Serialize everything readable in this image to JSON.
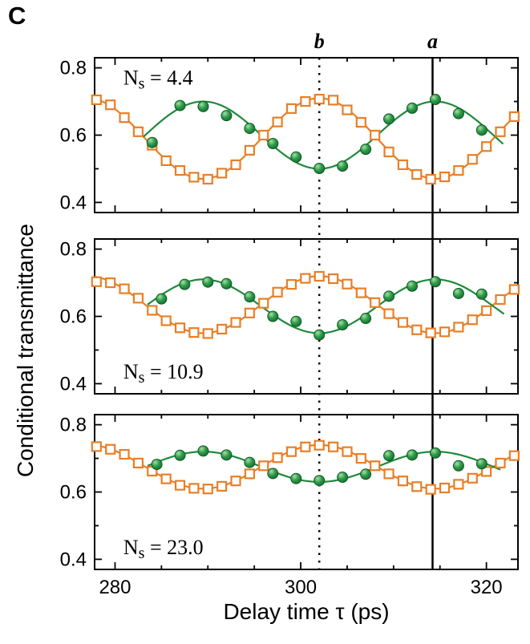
{
  "figure": {
    "panel_label": "C",
    "y_axis_title": "Conditional transmittance",
    "x_axis_title": "Delay time τ (ps)",
    "axes": {
      "xlim": [
        277.8,
        323.4
      ],
      "ylim": [
        0.37,
        0.83
      ],
      "x_ticks": [
        {
          "v": 280,
          "label": "280"
        },
        {
          "v": 300,
          "label": "300"
        },
        {
          "v": 320,
          "label": "320"
        }
      ],
      "x_minor_ticks": [
        285,
        290,
        295,
        305,
        310,
        315
      ],
      "y_ticks": [
        {
          "v": 0.8,
          "label": "0.8"
        },
        {
          "v": 0.6,
          "label": "0.6"
        },
        {
          "v": 0.4,
          "label": "0.4"
        }
      ],
      "y_minor_ticks": [
        0.5,
        0.7
      ]
    },
    "vlines": [
      {
        "label": "b",
        "x": 302,
        "style": "dashed"
      },
      {
        "label": "a",
        "x": 314.2,
        "style": "solid"
      }
    ],
    "colors": {
      "green": "#1f8a3c",
      "orange": "#e87f28"
    }
  },
  "chart_data": [
    {
      "type": "scatter+line",
      "label": "Ns = 4.4",
      "label_pos": "top-left",
      "series": [
        {
          "name": "orange-open-squares",
          "marker": "open-square",
          "color": "#e87f28",
          "fit": {
            "mean": 0.59,
            "amplitude": 0.12,
            "period": 25,
            "x0": 302,
            "sign": 1,
            "x_range": [
              277.8,
              323.4
            ]
          },
          "points": [
            [
              278,
              0.705
            ],
            [
              279.5,
              0.69
            ],
            [
              281,
              0.652
            ],
            [
              282.5,
              0.61
            ],
            [
              284,
              0.57
            ],
            [
              285.5,
              0.524
            ],
            [
              287,
              0.495
            ],
            [
              288.5,
              0.475
            ],
            [
              290,
              0.469
            ],
            [
              291.5,
              0.487
            ],
            [
              293,
              0.512
            ],
            [
              294.5,
              0.555
            ],
            [
              296,
              0.6
            ],
            [
              297.5,
              0.639
            ],
            [
              299,
              0.679
            ],
            [
              300.5,
              0.7
            ],
            [
              302,
              0.707
            ],
            [
              303.5,
              0.704
            ],
            [
              305,
              0.675
            ],
            [
              306.5,
              0.638
            ],
            [
              308,
              0.6
            ],
            [
              309.5,
              0.55
            ],
            [
              311,
              0.512
            ],
            [
              312.5,
              0.483
            ],
            [
              314,
              0.469
            ],
            [
              315.5,
              0.476
            ],
            [
              317,
              0.495
            ],
            [
              318.5,
              0.528
            ],
            [
              320,
              0.566
            ],
            [
              321.5,
              0.61
            ],
            [
              323,
              0.655
            ]
          ]
        },
        {
          "name": "green-filled-circles",
          "marker": "filled-circle",
          "color": "#1f8a3c",
          "fit": {
            "mean": 0.6,
            "amplitude": 0.1,
            "period": 25,
            "x0": 302,
            "sign": -1,
            "x_range": [
              283,
              322
            ]
          },
          "points": [
            [
              284,
              0.578
            ],
            [
              287,
              0.688
            ],
            [
              289.5,
              0.685
            ],
            [
              292,
              0.658
            ],
            [
              294.5,
              0.62
            ],
            [
              297,
              0.575
            ],
            [
              299.5,
              0.535
            ],
            [
              302,
              0.501
            ],
            [
              304.5,
              0.508
            ],
            [
              307,
              0.558
            ],
            [
              309.5,
              0.648
            ],
            [
              312,
              0.68
            ],
            [
              314.5,
              0.706
            ],
            [
              317,
              0.664
            ],
            [
              319.5,
              0.615
            ]
          ]
        }
      ]
    },
    {
      "type": "scatter+line",
      "label": "Ns = 10.9",
      "label_pos": "bottom-left",
      "series": [
        {
          "name": "orange-open-squares",
          "marker": "open-square",
          "color": "#e87f28",
          "fit": {
            "mean": 0.635,
            "amplitude": 0.085,
            "period": 25,
            "x0": 302,
            "sign": 1,
            "x_range": [
              277.8,
              323.4
            ]
          },
          "points": [
            [
              278,
              0.703
            ],
            [
              279.5,
              0.7
            ],
            [
              281,
              0.682
            ],
            [
              282.5,
              0.654
            ],
            [
              284,
              0.618
            ],
            [
              285.5,
              0.587
            ],
            [
              287,
              0.566
            ],
            [
              288.5,
              0.552
            ],
            [
              290,
              0.549
            ],
            [
              291.5,
              0.562
            ],
            [
              293,
              0.582
            ],
            [
              294.5,
              0.61
            ],
            [
              296,
              0.639
            ],
            [
              297.5,
              0.672
            ],
            [
              299,
              0.695
            ],
            [
              300.5,
              0.713
            ],
            [
              302,
              0.719
            ],
            [
              303.5,
              0.712
            ],
            [
              305,
              0.696
            ],
            [
              306.5,
              0.67
            ],
            [
              308,
              0.641
            ],
            [
              309.5,
              0.608
            ],
            [
              311,
              0.582
            ],
            [
              312.5,
              0.56
            ],
            [
              314,
              0.551
            ],
            [
              315.5,
              0.554
            ],
            [
              317,
              0.568
            ],
            [
              318.5,
              0.59
            ],
            [
              320,
              0.617
            ],
            [
              321.5,
              0.65
            ],
            [
              323,
              0.68
            ]
          ]
        },
        {
          "name": "green-filled-circles",
          "marker": "filled-circle",
          "color": "#1f8a3c",
          "fit": {
            "mean": 0.63,
            "amplitude": 0.08,
            "period": 25,
            "x0": 302,
            "sign": -1,
            "x_range": [
              283.5,
              322
            ]
          },
          "points": [
            [
              285,
              0.652
            ],
            [
              287.5,
              0.695
            ],
            [
              290,
              0.702
            ],
            [
              292,
              0.697
            ],
            [
              294.5,
              0.658
            ],
            [
              297,
              0.6
            ],
            [
              299.5,
              0.585
            ],
            [
              302,
              0.545
            ],
            [
              304.5,
              0.575
            ],
            [
              307,
              0.594
            ],
            [
              309.5,
              0.66
            ],
            [
              312,
              0.69
            ],
            [
              314.5,
              0.703
            ],
            [
              317,
              0.668
            ],
            [
              319.5,
              0.666
            ]
          ]
        }
      ]
    },
    {
      "type": "scatter+line",
      "label": "Ns = 23.0",
      "label_pos": "bottom-left",
      "series": [
        {
          "name": "orange-open-squares",
          "marker": "open-square",
          "color": "#e87f28",
          "fit": {
            "mean": 0.675,
            "amplitude": 0.065,
            "period": 25,
            "x0": 302,
            "sign": 1,
            "x_range": [
              277.8,
              323.4
            ]
          },
          "points": [
            [
              278,
              0.735
            ],
            [
              279.5,
              0.727
            ],
            [
              281,
              0.712
            ],
            [
              282.5,
              0.686
            ],
            [
              284,
              0.662
            ],
            [
              285.5,
              0.639
            ],
            [
              287,
              0.62
            ],
            [
              288.5,
              0.611
            ],
            [
              290,
              0.609
            ],
            [
              291.5,
              0.617
            ],
            [
              293,
              0.633
            ],
            [
              294.5,
              0.654
            ],
            [
              296,
              0.678
            ],
            [
              297.5,
              0.702
            ],
            [
              299,
              0.72
            ],
            [
              300.5,
              0.734
            ],
            [
              302,
              0.739
            ],
            [
              303.5,
              0.734
            ],
            [
              305,
              0.72
            ],
            [
              306.5,
              0.7
            ],
            [
              308,
              0.678
            ],
            [
              309.5,
              0.654
            ],
            [
              311,
              0.633
            ],
            [
              312.5,
              0.616
            ],
            [
              314,
              0.608
            ],
            [
              315.5,
              0.612
            ],
            [
              317,
              0.623
            ],
            [
              318.5,
              0.641
            ],
            [
              320,
              0.661
            ],
            [
              321.5,
              0.686
            ],
            [
              323,
              0.708
            ]
          ]
        },
        {
          "name": "green-filled-circles",
          "marker": "filled-circle",
          "color": "#1f8a3c",
          "fit": {
            "mean": 0.675,
            "amplitude": 0.045,
            "period": 25,
            "x0": 302,
            "sign": -1,
            "x_range": [
              283.5,
              321.5
            ]
          },
          "points": [
            [
              284.5,
              0.682
            ],
            [
              287,
              0.709
            ],
            [
              289.5,
              0.722
            ],
            [
              292,
              0.71
            ],
            [
              294.5,
              0.688
            ],
            [
              297,
              0.655
            ],
            [
              299.5,
              0.64
            ],
            [
              302,
              0.634
            ],
            [
              304.5,
              0.644
            ],
            [
              307,
              0.653
            ],
            [
              309.5,
              0.708
            ],
            [
              312,
              0.71
            ],
            [
              314.5,
              0.716
            ],
            [
              317,
              0.678
            ],
            [
              319.5,
              0.684
            ]
          ]
        }
      ]
    }
  ]
}
